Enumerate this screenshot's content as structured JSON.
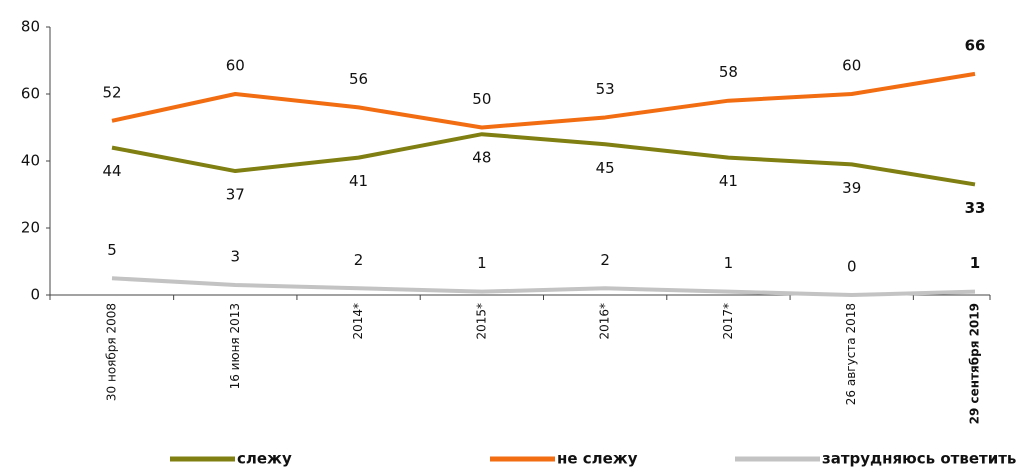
{
  "chart_data": {
    "type": "line",
    "categories": [
      "30 ноября 2008",
      "16 июня 2013",
      "2014*",
      "2015*",
      "2016*",
      "2017*",
      "26 августа 2018",
      "29 сентября 2019"
    ],
    "series": [
      {
        "name": "слежу",
        "color": "#7f7f12",
        "values": [
          44,
          37,
          41,
          48,
          45,
          41,
          39,
          33
        ]
      },
      {
        "name": "не слежу",
        "color": "#f26d12",
        "values": [
          52,
          60,
          56,
          50,
          53,
          58,
          60,
          66
        ]
      },
      {
        "name": "затрудняюсь ответить",
        "color": "#c3c3c3",
        "values": [
          5,
          3,
          2,
          1,
          2,
          1,
          0,
          1
        ]
      }
    ],
    "ylim": [
      0,
      80
    ],
    "yticks": [
      0,
      20,
      40,
      60,
      80
    ],
    "grid": false
  }
}
